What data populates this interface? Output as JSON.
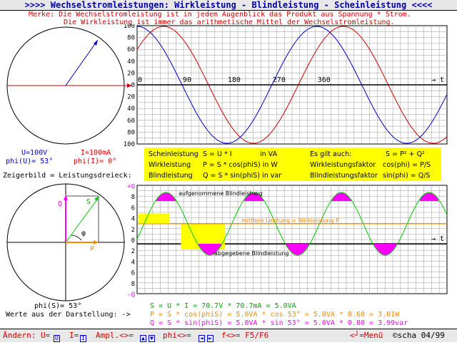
{
  "title": ">>>>  Wechselstromleistungen: Wirkleistung - Blindleistung - Scheinleistung  <<<<",
  "merke_line1": "Merke: Die Wechselstromleistung ist in jedem Augenblick das Produkt aus Spannung * Strom.",
  "merke_line2": "Die Wirkleistung ist immer das arithmetische Mittel der Wechselstromleistung.",
  "phasor": {
    "u_label": "U=100V",
    "phi_u_label": "phi(U)= 53°",
    "i_label": "I=100mA",
    "phi_i_label": "phi(I)= 0°"
  },
  "zeiger_label": "Zeigerbild = Leistungsdreieck:",
  "triangle": {
    "q_label": "Q",
    "s_label": "S",
    "p_label": "P",
    "phi_label": "φ",
    "phi_s_label": "phi(S)= 53°",
    "werte_label": "Werte aus der Darstellung: ->"
  },
  "wave_chart": {
    "y_ticks": [
      "100",
      "80",
      "60",
      "40",
      "20",
      "0",
      "20",
      "40",
      "60",
      "80",
      "100"
    ],
    "x_ticks": [
      "0",
      "90",
      "180",
      "270",
      "360"
    ],
    "t_label": "t"
  },
  "power_chart": {
    "y_ticks": [
      "+Q",
      "8",
      "6",
      "4",
      "2",
      "0",
      "2",
      "4",
      "6",
      "8",
      "-Q"
    ],
    "t_label": "t",
    "label_aufgenommen": "aufgenommene Blindleistung",
    "label_mittlere": "mittlere Leistung = Wirkleistung P",
    "label_abgegeben": "abgegebene Blindleistung"
  },
  "formulas": {
    "r1c1": "Scheinleistung",
    "r1c2": "S = U * I",
    "r1c3": "in VA",
    "r2c1": "Wirkleistung",
    "r2c2": "P = S * cos(phiS) in W",
    "r3c1": "Blindleistung",
    "r3c2": "Q = S * sin(phiS) in var",
    "es_gilt": "Es gilt auch:",
    "s_formula": "S = P² + Q²",
    "wlf": "Wirkleistungsfaktor",
    "wlf_formula": "cos(phi) = P/S",
    "blf": "Blindleistungsfaktor",
    "blf_formula": "sin(phi) = Q/S"
  },
  "results": {
    "line_s": "S = U * I = 70.7V * 70.7mA =  5.0VA",
    "line_p": "P = S * cos(phiS) =  5.0VA * cos 53° =  5.0VA *  0.60 =  3.01W",
    "line_q": "Q = S * sin(phiS) =  5.0VA * sin 53° =  5.0VA *  0.80 =  3.99var"
  },
  "bottom": {
    "andern": "Ändern: U=",
    "u_key": "U",
    "i_sep": "I=",
    "i_key": "I",
    "ampl": "Ampl.<>=",
    "phi": "phi<>=",
    "f": "f<>= F5/F6",
    "menu": "<┘=Menü",
    "copyright": "©scha 04/99"
  },
  "colors": {
    "blue": "#0000cc",
    "red": "#d00000",
    "magenta": "#ff00ff",
    "green": "#00cc00",
    "yellow": "#ffff00",
    "orange": "#ff8800"
  }
}
